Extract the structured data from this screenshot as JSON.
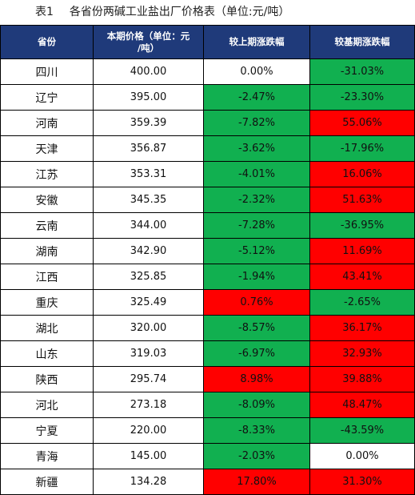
{
  "caption": {
    "label": "表1",
    "title": "各省份两碱工业盐出厂价格表（单位:元/吨）"
  },
  "headers": {
    "province": "省份",
    "price_line1": "本期价格（单位：元",
    "price_line2": "/吨）",
    "mom": "较上期涨跌幅",
    "yoy": "较基期涨跌幅"
  },
  "colors": {
    "header_bg": "#1f3a7a",
    "increase": "#ff0000",
    "decrease": "#11b050"
  },
  "rows": [
    {
      "province": "四川",
      "price": "400.00",
      "mom": "0.00%",
      "yoy": "-31.03%"
    },
    {
      "province": "辽宁",
      "price": "395.00",
      "mom": "-2.47%",
      "yoy": "-23.30%"
    },
    {
      "province": "河南",
      "price": "359.39",
      "mom": "-7.82%",
      "yoy": "55.06%"
    },
    {
      "province": "天津",
      "price": "356.87",
      "mom": "-3.62%",
      "yoy": "-17.96%"
    },
    {
      "province": "江苏",
      "price": "353.31",
      "mom": "-4.01%",
      "yoy": "16.06%"
    },
    {
      "province": "安徽",
      "price": "345.35",
      "mom": "-2.32%",
      "yoy": "51.63%"
    },
    {
      "province": "云南",
      "price": "344.00",
      "mom": "-7.28%",
      "yoy": "-36.95%"
    },
    {
      "province": "湖南",
      "price": "342.90",
      "mom": "-5.12%",
      "yoy": "11.69%"
    },
    {
      "province": "江西",
      "price": "325.85",
      "mom": "-1.94%",
      "yoy": "43.41%"
    },
    {
      "province": "重庆",
      "price": "325.49",
      "mom": "0.76%",
      "yoy": "-2.65%"
    },
    {
      "province": "湖北",
      "price": "320.00",
      "mom": "-8.57%",
      "yoy": "36.17%"
    },
    {
      "province": "山东",
      "price": "319.03",
      "mom": "-6.97%",
      "yoy": "32.93%"
    },
    {
      "province": "陕西",
      "price": "295.74",
      "mom": "8.98%",
      "yoy": "39.88%"
    },
    {
      "province": "河北",
      "price": "273.18",
      "mom": "-8.09%",
      "yoy": "48.47%"
    },
    {
      "province": "宁夏",
      "price": "220.00",
      "mom": "-8.33%",
      "yoy": "-43.59%"
    },
    {
      "province": "青海",
      "price": "145.00",
      "mom": "-2.03%",
      "yoy": "0.00%"
    },
    {
      "province": "新疆",
      "price": "134.28",
      "mom": "17.80%",
      "yoy": "31.30%"
    }
  ]
}
